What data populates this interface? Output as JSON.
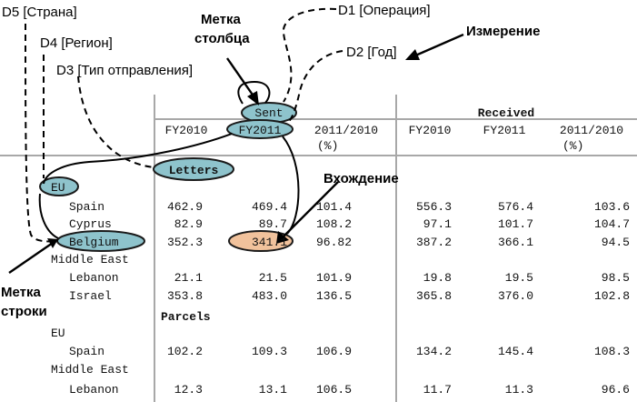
{
  "dimension_labels": {
    "d5": "D5 [Страна]",
    "d4": "D4 [Регион]",
    "d3": "D3 [Тип отправления]",
    "d1": "D1 [Операция]",
    "d2": "D2 [Год]"
  },
  "annotations": {
    "column_label_line1": "Метка",
    "column_label_line2": "столбца",
    "dimension": "Измерение",
    "entry": "Вхождение",
    "row_label_line1": "Метка",
    "row_label_line2": "строки"
  },
  "table": {
    "group_sent": "Sent",
    "group_received": "Received",
    "col_fy2010": "FY2010",
    "col_fy2011": "FY2011",
    "col_ratio_line1": "2011/2010",
    "col_ratio_line2": "(%)",
    "section_letters": "Letters",
    "section_parcels": "Parcels",
    "region_eu": "EU",
    "region_middle_east": "Middle East",
    "rows": [
      {
        "label": "Spain",
        "values": [
          "462.9",
          "469.4",
          "101.4",
          "556.3",
          "576.4",
          "103.6"
        ]
      },
      {
        "label": "Cyprus",
        "values": [
          "82.9",
          "89.7",
          "108.2",
          "97.1",
          "101.7",
          "104.7"
        ]
      },
      {
        "label": "Belgium",
        "values": [
          "352.3",
          "341.1",
          "96.82",
          "387.2",
          "366.1",
          "94.5"
        ]
      },
      {
        "label": "Lebanon",
        "values": [
          "21.1",
          "21.5",
          "101.9",
          "19.8",
          "19.5",
          "98.5"
        ]
      },
      {
        "label": "Israel",
        "values": [
          "353.8",
          "483.0",
          "136.5",
          "365.8",
          "376.0",
          "102.8"
        ]
      },
      {
        "label": "Spain",
        "values": [
          "102.2",
          "109.3",
          "106.9",
          "134.2",
          "145.4",
          "108.3"
        ]
      },
      {
        "label": "Lebanon",
        "values": [
          "12.3",
          "13.1",
          "106.5",
          "11.7",
          "11.3",
          "96.6"
        ]
      }
    ]
  },
  "colors": {
    "highlight_teal": "#8ec3cc",
    "highlight_orange": "#f1c29c",
    "grid_gray": "#a8a8a8"
  }
}
